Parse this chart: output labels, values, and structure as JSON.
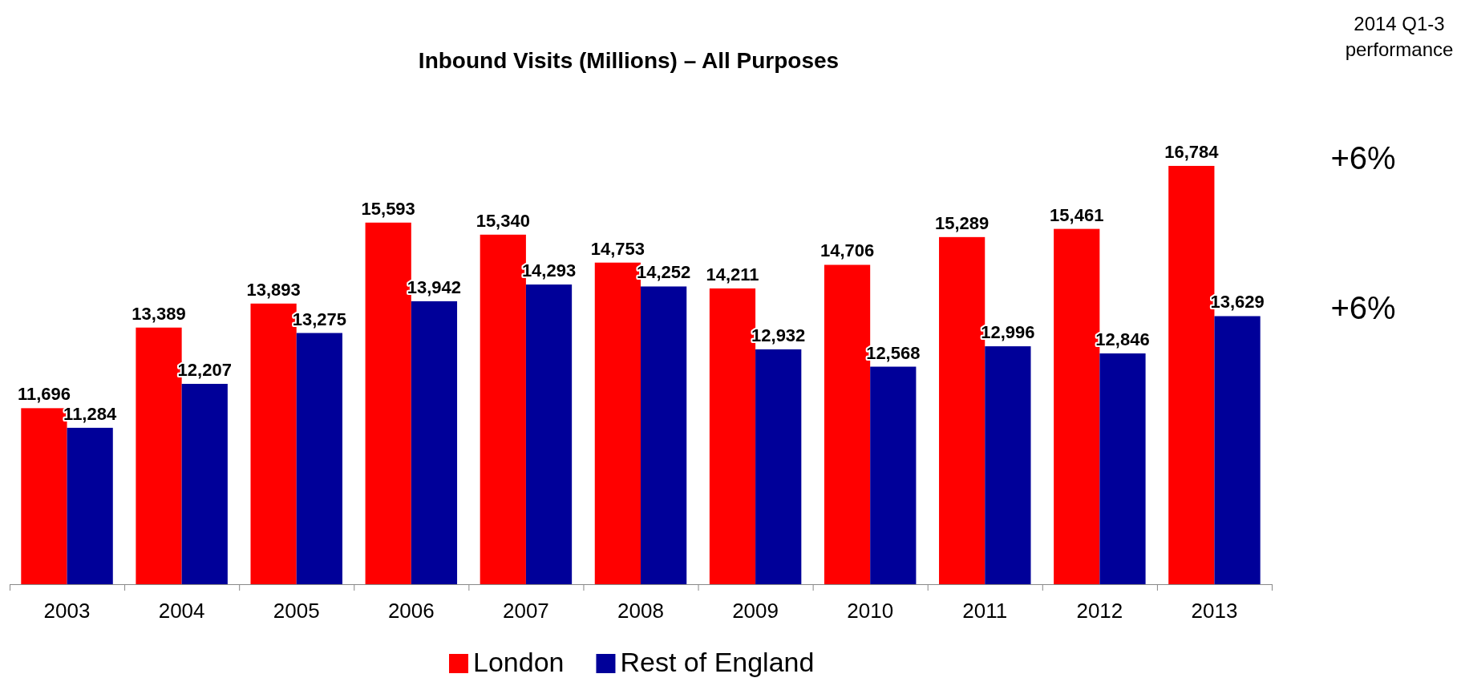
{
  "chart_data": {
    "type": "bar",
    "title": "Inbound Visits (Millions) – All Purposes",
    "categories": [
      "2003",
      "2004",
      "2005",
      "2006",
      "2007",
      "2008",
      "2009",
      "2010",
      "2011",
      "2012",
      "2013"
    ],
    "series": [
      {
        "name": "London",
        "color": "#ff0000",
        "values": [
          11696,
          13389,
          13893,
          15593,
          15340,
          14753,
          14211,
          14706,
          15289,
          15461,
          16784
        ],
        "value_labels": [
          "11,696",
          "13,389",
          "13,893",
          "15,593",
          "15,340",
          "14,753",
          "14,211",
          "14,706",
          "15,289",
          "15,461",
          "16,784"
        ]
      },
      {
        "name": "Rest of England",
        "color": "#000099",
        "values": [
          11284,
          12207,
          13275,
          13942,
          14293,
          14252,
          12932,
          12568,
          12996,
          12846,
          13629
        ],
        "value_labels": [
          "11,284",
          "12,207",
          "13,275",
          "13,942",
          "14,293",
          "14,252",
          "12,932",
          "12,568",
          "12,996",
          "12,846",
          "13,629"
        ]
      }
    ],
    "ylim": [
      8000,
      16784
    ],
    "tick_labels": "x",
    "legend": "bottom",
    "annotations": [
      "2014 Q1-3 performance",
      "+6%",
      "+6%"
    ]
  }
}
